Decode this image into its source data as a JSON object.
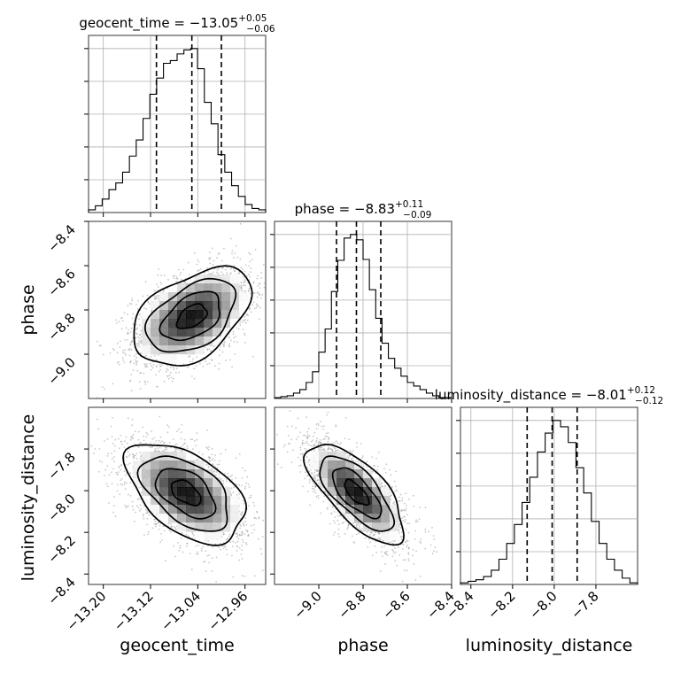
{
  "chart_data": {
    "type": "corner",
    "parameters": [
      "geocent_time",
      "phase",
      "luminosity_distance"
    ],
    "titles": [
      {
        "param": "geocent_time",
        "label": "geocent_time",
        "median": "−13.05",
        "plus": "+0.05",
        "minus": "−0.06"
      },
      {
        "param": "phase",
        "label": "phase",
        "median": "−8.83",
        "plus": "+0.11",
        "minus": "−0.09"
      },
      {
        "param": "luminosity_distance",
        "label": "luminosity_distance",
        "median": "−8.01",
        "plus": "+0.12",
        "minus": "−0.12"
      }
    ],
    "ranges": {
      "geocent_time": [
        -13.225,
        -12.925
      ],
      "phase": [
        -9.2,
        -8.4
      ],
      "luminosity_distance": [
        -8.45,
        -7.6
      ]
    },
    "stats": {
      "geocent_time": {
        "median": -13.05,
        "q16": -13.11,
        "q84": -13.0
      },
      "phase": {
        "median": -8.83,
        "q16": -8.92,
        "q84": -8.72
      },
      "luminosity_distance": {
        "median": -8.01,
        "q16": -8.13,
        "q84": -7.89
      }
    },
    "ticks": {
      "geocent_time": [
        "−13.20",
        "−13.12",
        "−13.04",
        "−12.96"
      ],
      "geocent_time_values": [
        -13.2,
        -13.12,
        -13.04,
        -12.96
      ],
      "phase_x": [
        "−9.0",
        "−8.8",
        "−8.6",
        "−8.4"
      ],
      "phase_x_values": [
        -9.0,
        -8.8,
        -8.6,
        -8.4
      ],
      "phase_y": [
        "−8.4",
        "−8.6",
        "−8.8",
        "−9.0"
      ],
      "phase_y_values": [
        -8.4,
        -8.6,
        -8.8,
        -9.0
      ],
      "luminosity_distance": [
        "−7.8",
        "−8.0",
        "−8.2",
        "−8.4"
      ],
      "luminosity_distance_values": [
        -7.8,
        -8.0,
        -8.2,
        -8.4
      ],
      "luminosity_distance_x": [
        "−8.4",
        "−8.2",
        "−8.0",
        "−7.8"
      ],
      "luminosity_distance_x_values": [
        -8.4,
        -8.2,
        -8.0,
        -7.8
      ]
    },
    "histograms": {
      "geocent_time": {
        "edges": [
          -13.225,
          -12.925
        ],
        "counts": [
          2,
          5,
          10,
          17,
          22,
          30,
          42,
          54,
          70,
          88,
          100,
          111,
          113,
          118,
          121,
          122,
          107,
          82,
          66,
          43,
          30,
          20,
          12,
          6,
          3,
          2
        ]
      },
      "phase": {
        "edges": [
          -9.2,
          -8.4
        ],
        "counts": [
          1,
          2,
          3,
          6,
          10,
          18,
          30,
          52,
          78,
          120,
          155,
          180,
          184,
          178,
          156,
          122,
          90,
          62,
          45,
          34,
          25,
          18,
          14,
          10,
          6,
          3,
          1,
          1
        ]
      },
      "luminosity_distance": {
        "edges": [
          -8.45,
          -7.6
        ],
        "counts": [
          1,
          2,
          3,
          5,
          9,
          16,
          26,
          38,
          52,
          68,
          84,
          96,
          104,
          100,
          90,
          74,
          58,
          40,
          26,
          16,
          9,
          4,
          1
        ]
      }
    },
    "grid": true
  }
}
